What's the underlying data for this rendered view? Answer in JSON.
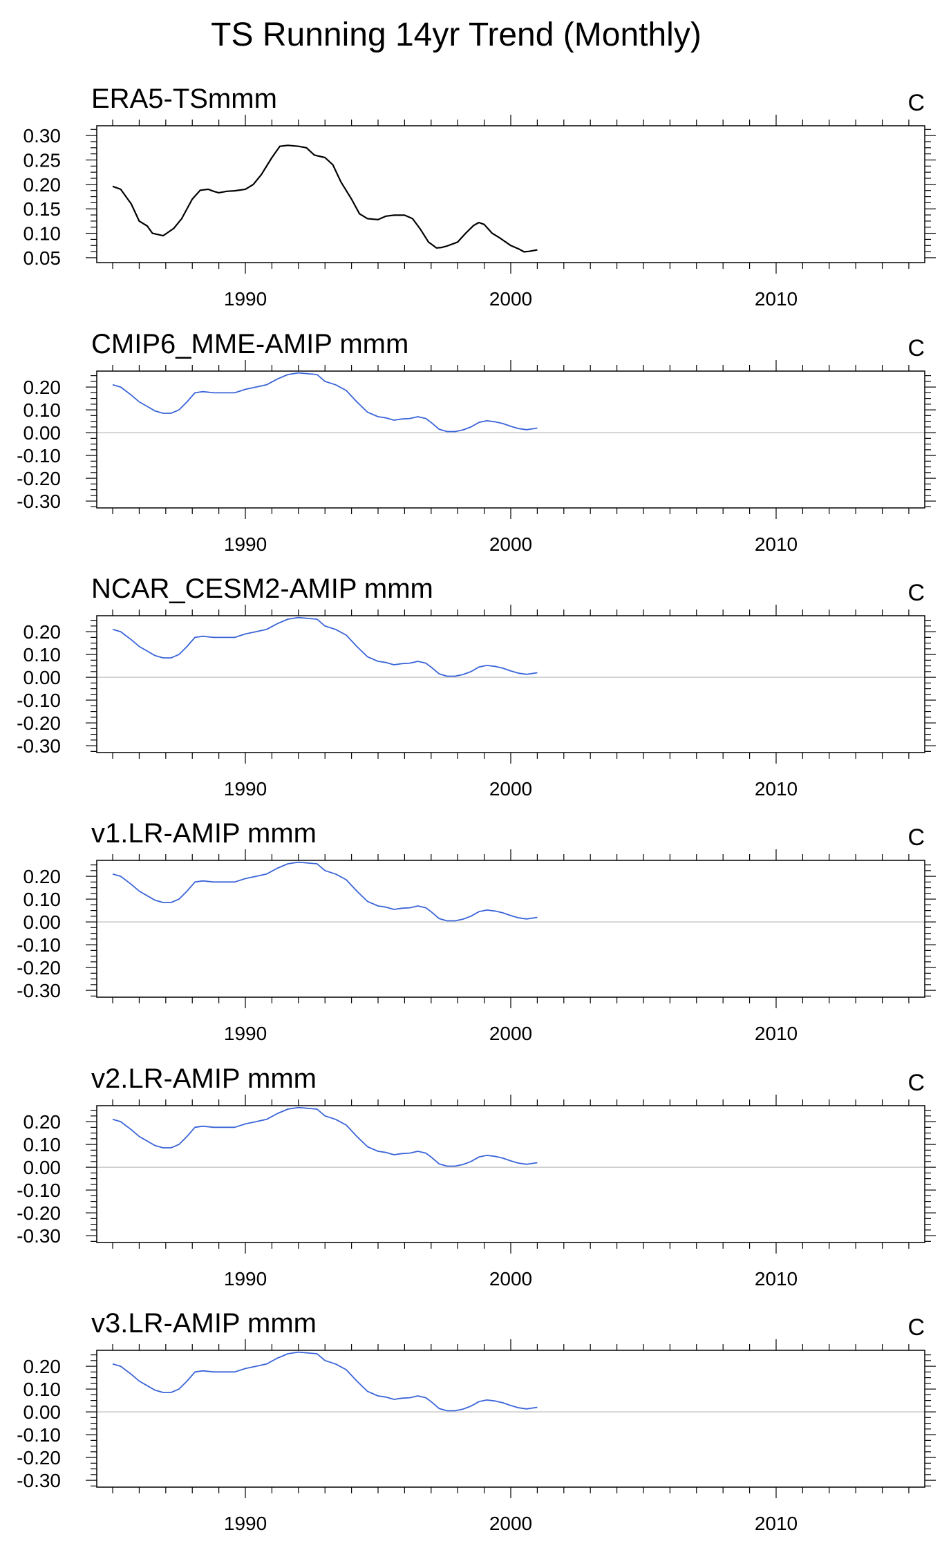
{
  "figure": {
    "title": "TS Running 14yr Trend (Monthly)",
    "colors": {
      "reference_line": "#000000",
      "model_line": "#3a64d8",
      "zero_line": "#c8c8c8",
      "frame": "#000000"
    }
  },
  "chart_data": [
    {
      "type": "line",
      "title": "ERA5-TSmmm",
      "units": "C",
      "xlim": [
        1984.4,
        2015.6
      ],
      "ylim": [
        0.04,
        0.32
      ],
      "x_ticks": [
        1990,
        2000,
        2010
      ],
      "x_tick_labels": [
        "1990",
        "2000",
        "2010"
      ],
      "y_ticks": [
        0.05,
        0.1,
        0.15,
        0.2,
        0.25,
        0.3
      ],
      "y_tick_labels": [
        "0.05",
        "0.10",
        "0.15",
        "0.20",
        "0.25",
        "0.30"
      ],
      "zero_line": false,
      "color": "#000000",
      "series": [
        {
          "x": [
            1985.0,
            1985.3,
            1985.7,
            1986.0,
            1986.3,
            1986.5,
            1986.9,
            1987.3,
            1987.6,
            1988.0,
            1988.3,
            1988.6,
            1988.8,
            1989.0,
            1989.3,
            1989.6,
            1990.0,
            1990.3,
            1990.6,
            1991.0,
            1991.3,
            1991.6,
            1992.0,
            1992.3,
            1992.6,
            1993.0,
            1993.3,
            1993.6,
            1994.0,
            1994.3,
            1994.6,
            1995.0,
            1995.3,
            1995.6,
            1996.0,
            1996.3,
            1996.6,
            1996.9,
            1997.2,
            1997.4,
            1997.6,
            1998.0,
            1998.3,
            1998.6,
            1998.8,
            1999.0,
            1999.3,
            1999.6,
            2000.0,
            2000.3,
            2000.5,
            2000.7,
            2001.0
          ],
          "y": [
            0.196,
            0.19,
            0.16,
            0.125,
            0.115,
            0.1,
            0.095,
            0.11,
            0.13,
            0.17,
            0.188,
            0.19,
            0.186,
            0.183,
            0.186,
            0.187,
            0.19,
            0.2,
            0.22,
            0.255,
            0.278,
            0.28,
            0.278,
            0.275,
            0.26,
            0.255,
            0.24,
            0.205,
            0.17,
            0.14,
            0.13,
            0.128,
            0.135,
            0.137,
            0.137,
            0.13,
            0.108,
            0.082,
            0.07,
            0.071,
            0.074,
            0.082,
            0.1,
            0.116,
            0.122,
            0.118,
            0.1,
            0.09,
            0.075,
            0.068,
            0.062,
            0.063,
            0.066
          ]
        }
      ]
    },
    {
      "type": "line",
      "title": "CMIP6_MME-AMIP  mmm",
      "units": "C",
      "xlim": [
        1984.4,
        2015.6
      ],
      "ylim": [
        -0.33,
        0.27
      ],
      "x_ticks": [
        1990,
        2000,
        2010
      ],
      "x_tick_labels": [
        "1990",
        "2000",
        "2010"
      ],
      "y_ticks": [
        0.2,
        0.1,
        0.0,
        -0.1,
        -0.2,
        -0.3
      ],
      "y_tick_labels": [
        "0.20",
        "0.10",
        "0.00",
        "-0.10",
        "-0.20",
        "-0.30"
      ],
      "zero_line": true,
      "color": "#3a64d8",
      "series": [
        {
          "x": [
            1985.0,
            1985.3,
            1985.7,
            1986.0,
            1986.3,
            1986.6,
            1986.9,
            1987.2,
            1987.5,
            1987.8,
            1988.1,
            1988.4,
            1988.8,
            1989.2,
            1989.6,
            1990.0,
            1990.4,
            1990.8,
            1991.2,
            1991.6,
            1992.0,
            1992.4,
            1992.7,
            1993.0,
            1993.4,
            1993.8,
            1994.2,
            1994.6,
            1995.0,
            1995.3,
            1995.6,
            1995.9,
            1996.2,
            1996.5,
            1996.8,
            1997.0,
            1997.3,
            1997.6,
            1997.9,
            1998.2,
            1998.5,
            1998.8,
            1999.1,
            1999.4,
            1999.7,
            2000.0,
            2000.3,
            2000.6,
            2001.0
          ],
          "y": [
            0.21,
            0.2,
            0.165,
            0.135,
            0.115,
            0.095,
            0.085,
            0.085,
            0.1,
            0.135,
            0.175,
            0.18,
            0.175,
            0.175,
            0.175,
            0.19,
            0.2,
            0.21,
            0.235,
            0.255,
            0.262,
            0.258,
            0.255,
            0.225,
            0.21,
            0.185,
            0.135,
            0.09,
            0.07,
            0.065,
            0.055,
            0.06,
            0.062,
            0.07,
            0.062,
            0.045,
            0.015,
            0.005,
            0.005,
            0.012,
            0.025,
            0.045,
            0.052,
            0.048,
            0.04,
            0.028,
            0.018,
            0.013,
            0.02
          ]
        }
      ]
    },
    {
      "type": "line",
      "title": "NCAR_CESM2-AMIP  mmm",
      "units": "C",
      "xlim": [
        1984.4,
        2015.6
      ],
      "ylim": [
        -0.33,
        0.27
      ],
      "x_ticks": [
        1990,
        2000,
        2010
      ],
      "x_tick_labels": [
        "1990",
        "2000",
        "2010"
      ],
      "y_ticks": [
        0.2,
        0.1,
        0.0,
        -0.1,
        -0.2,
        -0.3
      ],
      "y_tick_labels": [
        "0.20",
        "0.10",
        "0.00",
        "-0.10",
        "-0.20",
        "-0.30"
      ],
      "zero_line": true,
      "color": "#3a64d8",
      "series": [
        {
          "x": [
            1985.0,
            1985.3,
            1985.7,
            1986.0,
            1986.3,
            1986.6,
            1986.9,
            1987.2,
            1987.5,
            1987.8,
            1988.1,
            1988.4,
            1988.8,
            1989.2,
            1989.6,
            1990.0,
            1990.4,
            1990.8,
            1991.2,
            1991.6,
            1992.0,
            1992.4,
            1992.7,
            1993.0,
            1993.4,
            1993.8,
            1994.2,
            1994.6,
            1995.0,
            1995.3,
            1995.6,
            1995.9,
            1996.2,
            1996.5,
            1996.8,
            1997.0,
            1997.3,
            1997.6,
            1997.9,
            1998.2,
            1998.5,
            1998.8,
            1999.1,
            1999.4,
            1999.7,
            2000.0,
            2000.3,
            2000.6,
            2001.0
          ],
          "y": [
            0.21,
            0.2,
            0.165,
            0.135,
            0.115,
            0.095,
            0.085,
            0.085,
            0.1,
            0.135,
            0.175,
            0.18,
            0.175,
            0.175,
            0.175,
            0.19,
            0.2,
            0.21,
            0.235,
            0.255,
            0.262,
            0.258,
            0.255,
            0.225,
            0.21,
            0.185,
            0.135,
            0.09,
            0.07,
            0.065,
            0.055,
            0.06,
            0.062,
            0.07,
            0.062,
            0.045,
            0.015,
            0.005,
            0.005,
            0.012,
            0.025,
            0.045,
            0.052,
            0.048,
            0.04,
            0.028,
            0.018,
            0.013,
            0.02
          ]
        }
      ]
    },
    {
      "type": "line",
      "title": "v1.LR-AMIP  mmm",
      "units": "C",
      "xlim": [
        1984.4,
        2015.6
      ],
      "ylim": [
        -0.33,
        0.27
      ],
      "x_ticks": [
        1990,
        2000,
        2010
      ],
      "x_tick_labels": [
        "1990",
        "2000",
        "2010"
      ],
      "y_ticks": [
        0.2,
        0.1,
        0.0,
        -0.1,
        -0.2,
        -0.3
      ],
      "y_tick_labels": [
        "0.20",
        "0.10",
        "0.00",
        "-0.10",
        "-0.20",
        "-0.30"
      ],
      "zero_line": true,
      "color": "#3a64d8",
      "series": [
        {
          "x": [
            1985.0,
            1985.3,
            1985.7,
            1986.0,
            1986.3,
            1986.6,
            1986.9,
            1987.2,
            1987.5,
            1987.8,
            1988.1,
            1988.4,
            1988.8,
            1989.2,
            1989.6,
            1990.0,
            1990.4,
            1990.8,
            1991.2,
            1991.6,
            1992.0,
            1992.4,
            1992.7,
            1993.0,
            1993.4,
            1993.8,
            1994.2,
            1994.6,
            1995.0,
            1995.3,
            1995.6,
            1995.9,
            1996.2,
            1996.5,
            1996.8,
            1997.0,
            1997.3,
            1997.6,
            1997.9,
            1998.2,
            1998.5,
            1998.8,
            1999.1,
            1999.4,
            1999.7,
            2000.0,
            2000.3,
            2000.6,
            2001.0
          ],
          "y": [
            0.21,
            0.2,
            0.165,
            0.135,
            0.115,
            0.095,
            0.085,
            0.085,
            0.1,
            0.135,
            0.175,
            0.18,
            0.175,
            0.175,
            0.175,
            0.19,
            0.2,
            0.21,
            0.235,
            0.255,
            0.262,
            0.258,
            0.255,
            0.225,
            0.21,
            0.185,
            0.135,
            0.09,
            0.07,
            0.065,
            0.055,
            0.06,
            0.062,
            0.07,
            0.062,
            0.045,
            0.015,
            0.005,
            0.005,
            0.012,
            0.025,
            0.045,
            0.052,
            0.048,
            0.04,
            0.028,
            0.018,
            0.013,
            0.02
          ]
        }
      ]
    },
    {
      "type": "line",
      "title": "v2.LR-AMIP  mmm",
      "units": "C",
      "xlim": [
        1984.4,
        2015.6
      ],
      "ylim": [
        -0.33,
        0.27
      ],
      "x_ticks": [
        1990,
        2000,
        2010
      ],
      "x_tick_labels": [
        "1990",
        "2000",
        "2010"
      ],
      "y_ticks": [
        0.2,
        0.1,
        0.0,
        -0.1,
        -0.2,
        -0.3
      ],
      "y_tick_labels": [
        "0.20",
        "0.10",
        "0.00",
        "-0.10",
        "-0.20",
        "-0.30"
      ],
      "zero_line": true,
      "color": "#3a64d8",
      "series": [
        {
          "x": [
            1985.0,
            1985.3,
            1985.7,
            1986.0,
            1986.3,
            1986.6,
            1986.9,
            1987.2,
            1987.5,
            1987.8,
            1988.1,
            1988.4,
            1988.8,
            1989.2,
            1989.6,
            1990.0,
            1990.4,
            1990.8,
            1991.2,
            1991.6,
            1992.0,
            1992.4,
            1992.7,
            1993.0,
            1993.4,
            1993.8,
            1994.2,
            1994.6,
            1995.0,
            1995.3,
            1995.6,
            1995.9,
            1996.2,
            1996.5,
            1996.8,
            1997.0,
            1997.3,
            1997.6,
            1997.9,
            1998.2,
            1998.5,
            1998.8,
            1999.1,
            1999.4,
            1999.7,
            2000.0,
            2000.3,
            2000.6,
            2001.0
          ],
          "y": [
            0.21,
            0.2,
            0.165,
            0.135,
            0.115,
            0.095,
            0.085,
            0.085,
            0.1,
            0.135,
            0.175,
            0.18,
            0.175,
            0.175,
            0.175,
            0.19,
            0.2,
            0.21,
            0.235,
            0.255,
            0.262,
            0.258,
            0.255,
            0.225,
            0.21,
            0.185,
            0.135,
            0.09,
            0.07,
            0.065,
            0.055,
            0.06,
            0.062,
            0.07,
            0.062,
            0.045,
            0.015,
            0.005,
            0.005,
            0.012,
            0.025,
            0.045,
            0.052,
            0.048,
            0.04,
            0.028,
            0.018,
            0.013,
            0.02
          ]
        }
      ]
    },
    {
      "type": "line",
      "title": "v3.LR-AMIP  mmm",
      "units": "C",
      "xlim": [
        1984.4,
        2015.6
      ],
      "ylim": [
        -0.33,
        0.27
      ],
      "x_ticks": [
        1990,
        2000,
        2010
      ],
      "x_tick_labels": [
        "1990",
        "2000",
        "2010"
      ],
      "y_ticks": [
        0.2,
        0.1,
        0.0,
        -0.1,
        -0.2,
        -0.3
      ],
      "y_tick_labels": [
        "0.20",
        "0.10",
        "0.00",
        "-0.10",
        "-0.20",
        "-0.30"
      ],
      "zero_line": true,
      "color": "#3a64d8",
      "series": [
        {
          "x": [
            1985.0,
            1985.3,
            1985.7,
            1986.0,
            1986.3,
            1986.6,
            1986.9,
            1987.2,
            1987.5,
            1987.8,
            1988.1,
            1988.4,
            1988.8,
            1989.2,
            1989.6,
            1990.0,
            1990.4,
            1990.8,
            1991.2,
            1991.6,
            1992.0,
            1992.4,
            1992.7,
            1993.0,
            1993.4,
            1993.8,
            1994.2,
            1994.6,
            1995.0,
            1995.3,
            1995.6,
            1995.9,
            1996.2,
            1996.5,
            1996.8,
            1997.0,
            1997.3,
            1997.6,
            1997.9,
            1998.2,
            1998.5,
            1998.8,
            1999.1,
            1999.4,
            1999.7,
            2000.0,
            2000.3,
            2000.6,
            2001.0
          ],
          "y": [
            0.21,
            0.2,
            0.165,
            0.135,
            0.115,
            0.095,
            0.085,
            0.085,
            0.1,
            0.135,
            0.175,
            0.18,
            0.175,
            0.175,
            0.175,
            0.19,
            0.2,
            0.21,
            0.235,
            0.255,
            0.262,
            0.258,
            0.255,
            0.225,
            0.21,
            0.185,
            0.135,
            0.09,
            0.07,
            0.065,
            0.055,
            0.06,
            0.062,
            0.07,
            0.062,
            0.045,
            0.015,
            0.005,
            0.005,
            0.012,
            0.025,
            0.045,
            0.052,
            0.048,
            0.04,
            0.028,
            0.018,
            0.013,
            0.02
          ]
        }
      ]
    }
  ]
}
